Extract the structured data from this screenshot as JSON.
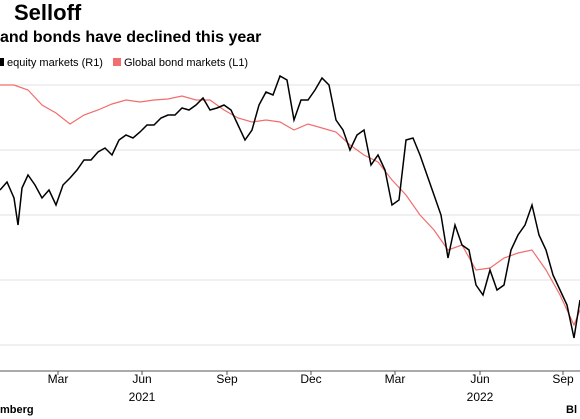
{
  "chart_data": {
    "type": "line",
    "title": "Selloff",
    "subtitle": "and bonds have declined this year",
    "source": "mberg",
    "source_right": "Bl",
    "xlim": [
      0,
      580
    ],
    "ylim": [
      0,
      312
    ],
    "y2lim": [
      0,
      312
    ],
    "yticks": [
      26,
      91,
      156,
      221,
      286
    ],
    "grid": true,
    "xticks": [
      {
        "value": 58,
        "label": "Mar"
      },
      {
        "value": 142,
        "label": "Jun"
      },
      {
        "value": 227,
        "label": "Sep"
      },
      {
        "value": 311,
        "label": "Dec"
      },
      {
        "value": 395,
        "label": "Mar"
      },
      {
        "value": 480,
        "label": "Jun"
      },
      {
        "value": 563,
        "label": "Sep"
      }
    ],
    "year_labels": [
      {
        "value": 142,
        "label": "2021"
      },
      {
        "value": 480,
        "label": "2022"
      }
    ],
    "series": [
      {
        "name": "equity markets (R1)",
        "color": "#000000",
        "axis": "y2",
        "x": [
          0,
          7,
          14,
          18,
          22,
          28,
          35,
          42,
          49,
          56,
          63,
          70,
          77,
          84,
          91,
          98,
          105,
          112,
          119,
          126,
          133,
          140,
          147,
          154,
          161,
          168,
          175,
          182,
          189,
          196,
          203,
          210,
          217,
          224,
          231,
          238,
          245,
          252,
          259,
          266,
          273,
          280,
          287,
          294,
          301,
          308,
          315,
          322,
          329,
          336,
          343,
          350,
          357,
          364,
          371,
          378,
          385,
          392,
          399,
          406,
          413,
          420,
          427,
          434,
          441,
          448,
          455,
          462,
          469,
          476,
          483,
          490,
          497,
          504,
          511,
          518,
          525,
          532,
          539,
          546,
          553,
          560,
          567,
          574,
          580
        ],
        "values": [
          181,
          189,
          173,
          146,
          183,
          196,
          186,
          173,
          181,
          166,
          186,
          193,
          201,
          211,
          211,
          219,
          223,
          216,
          231,
          236,
          233,
          239,
          246,
          246,
          253,
          256,
          256,
          263,
          261,
          266,
          273,
          261,
          263,
          266,
          261,
          246,
          231,
          241,
          266,
          279,
          276,
          295,
          291,
          251,
          271,
          271,
          281,
          293,
          286,
          251,
          241,
          221,
          236,
          241,
          206,
          216,
          201,
          166,
          171,
          231,
          233,
          216,
          196,
          176,
          156,
          113,
          146,
          126,
          121,
          86,
          76,
          101,
          81,
          86,
          121,
          136,
          146,
          166,
          136,
          121,
          96,
          81,
          66,
          33,
          71
        ]
      },
      {
        "name": "Global bond markets (L1)",
        "color": "#f26d6d",
        "x": [
          0,
          14,
          28,
          42,
          56,
          70,
          84,
          98,
          112,
          126,
          140,
          154,
          168,
          182,
          196,
          210,
          224,
          238,
          252,
          266,
          280,
          294,
          308,
          322,
          336,
          350,
          364,
          378,
          392,
          406,
          420,
          434,
          448,
          462,
          476,
          490,
          504,
          518,
          532,
          546,
          560,
          574,
          580
        ],
        "values": [
          286,
          286,
          281,
          266,
          258,
          247,
          256,
          261,
          267,
          271,
          269,
          271,
          272,
          275,
          271,
          271,
          261,
          253,
          249,
          251,
          249,
          241,
          247,
          243,
          239,
          226,
          216,
          209,
          191,
          176,
          156,
          141,
          121,
          126,
          101,
          103,
          113,
          118,
          121,
          101,
          76,
          46,
          61
        ]
      }
    ]
  }
}
